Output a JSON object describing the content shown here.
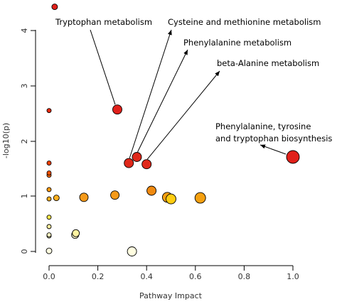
{
  "chart_data": {
    "type": "scatter",
    "xlabel": "Pathway Impact",
    "ylabel": "-log10(p)",
    "xlim": [
      0,
      1.0
    ],
    "ylim": [
      0,
      4.4
    ],
    "xticks": [
      "0.0",
      "0.2",
      "0.4",
      "0.6",
      "0.8",
      "1.0"
    ],
    "yticks": [
      "0",
      "1",
      "2",
      "3",
      "4"
    ],
    "grid": false,
    "points": [
      {
        "x": 0.0,
        "y": 0.01,
        "r": 4,
        "color": "#fffde0"
      },
      {
        "x": 0.0,
        "y": 0.28,
        "r": 3,
        "color": "#fffbd0"
      },
      {
        "x": 0.0,
        "y": 0.3,
        "r": 3,
        "color": "#fff8c0"
      },
      {
        "x": 0.0,
        "y": 0.45,
        "r": 3,
        "color": "#fff3a0"
      },
      {
        "x": 0.0,
        "y": 0.62,
        "r": 3,
        "color": "#ffe84a"
      },
      {
        "x": 0.0,
        "y": 0.95,
        "r": 3,
        "color": "#ffb020"
      },
      {
        "x": 0.0,
        "y": 1.12,
        "r": 3,
        "color": "#ff9a10"
      },
      {
        "x": 0.0,
        "y": 1.38,
        "r": 3,
        "color": "#ff6a00"
      },
      {
        "x": 0.0,
        "y": 1.42,
        "r": 3,
        "color": "#ff5000"
      },
      {
        "x": 0.0,
        "y": 1.6,
        "r": 3,
        "color": "#ff4000"
      },
      {
        "x": 0.0,
        "y": 2.55,
        "r": 3,
        "color": "#e82a10"
      },
      {
        "x": 0.03,
        "y": 0.97,
        "r": 4,
        "color": "#ffb020"
      },
      {
        "x": 0.107,
        "y": 0.3,
        "r": 5,
        "color": "#fffbd0"
      },
      {
        "x": 0.11,
        "y": 0.33,
        "r": 5,
        "color": "#fff3a0"
      },
      {
        "x": 0.143,
        "y": 0.98,
        "r": 6,
        "color": "#f59a1a"
      },
      {
        "x": 0.27,
        "y": 1.02,
        "r": 6,
        "color": "#f59a1a"
      },
      {
        "x": 0.28,
        "y": 2.57,
        "r": 6.5,
        "color": "#e0201a"
      },
      {
        "x": 0.34,
        "y": 0.0,
        "r": 6.5,
        "color": "#fffde0"
      },
      {
        "x": 0.327,
        "y": 1.6,
        "r": 6.5,
        "color": "#e0281a"
      },
      {
        "x": 0.36,
        "y": 1.71,
        "r": 6.5,
        "color": "#e0281a"
      },
      {
        "x": 0.4,
        "y": 1.58,
        "r": 6.5,
        "color": "#e0281a"
      },
      {
        "x": 0.42,
        "y": 1.1,
        "r": 6.5,
        "color": "#f08a10"
      },
      {
        "x": 0.485,
        "y": 0.98,
        "r": 7,
        "color": "#f5a010"
      },
      {
        "x": 0.5,
        "y": 0.95,
        "r": 7,
        "color": "#ffcc10"
      },
      {
        "x": 0.62,
        "y": 0.97,
        "r": 7.5,
        "color": "#f5a010"
      },
      {
        "x": 1.0,
        "y": 1.71,
        "r": 9,
        "color": "#e0201a"
      },
      {
        "x": 0.023,
        "y": 4.43,
        "r": 4,
        "color": "#e0201a"
      }
    ],
    "annotations": [
      {
        "label": "Tryptophan metabolism",
        "pointIndex": 16
      },
      {
        "label": "Cysteine and methionine metabolism",
        "pointIndex": 18
      },
      {
        "label": "Phenylalanine metabolism",
        "pointIndex": 19
      },
      {
        "label": "beta-Alanine metabolism",
        "pointIndex": 20
      },
      {
        "label_line1": "Phenylalanine, tyrosine",
        "label_line2": "and tryptophan biosynthesis",
        "pointIndex": 25
      }
    ]
  }
}
